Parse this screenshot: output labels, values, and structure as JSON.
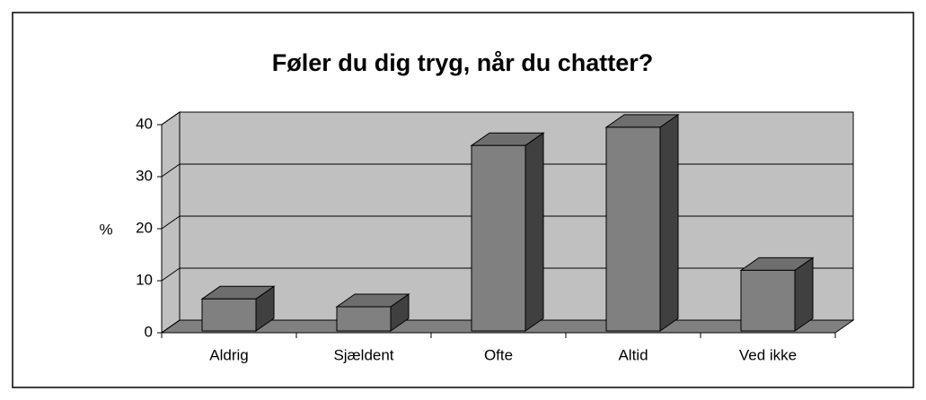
{
  "chart_data": {
    "type": "bar3d",
    "title": "Føler du dig tryg, når du chatter?",
    "y_label": "%",
    "categories": [
      "Aldrig",
      "Sjældent",
      "Ofte",
      "Altid",
      "Ved ikke"
    ],
    "values": [
      6.5,
      5,
      36,
      39.5,
      12
    ],
    "color": "#808080",
    "ylim": [
      0,
      40
    ],
    "yticks": [
      0,
      10,
      20,
      30,
      40
    ],
    "grid": true
  }
}
